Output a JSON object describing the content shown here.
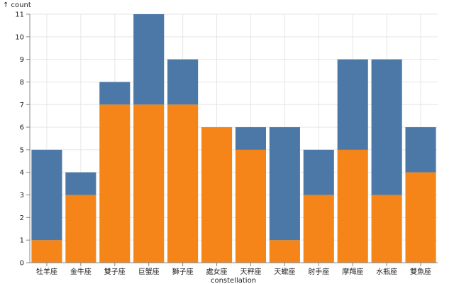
{
  "chart_data": {
    "type": "bar",
    "stacked": true,
    "categories": [
      "牡羊座",
      "金牛座",
      "雙子座",
      "巨蟹座",
      "獅子座",
      "處女座",
      "天秤座",
      "天蠍座",
      "射手座",
      "摩羯座",
      "水瓶座",
      "雙魚座"
    ],
    "series": [
      {
        "values": [
          1,
          3,
          7,
          7,
          7,
          6,
          5,
          1,
          3,
          5,
          3,
          4
        ],
        "color": "#f58518"
      },
      {
        "values": [
          4,
          1,
          1,
          4,
          2,
          0,
          1,
          5,
          2,
          4,
          6,
          2
        ],
        "color": "#4c78a8"
      }
    ],
    "xlabel": "constellation",
    "ylabel": "↑ count",
    "ylim": [
      0,
      11
    ],
    "yticks": [
      0,
      1,
      2,
      3,
      4,
      5,
      6,
      7,
      8,
      9,
      10,
      11
    ],
    "grid": true,
    "legend": "none"
  }
}
